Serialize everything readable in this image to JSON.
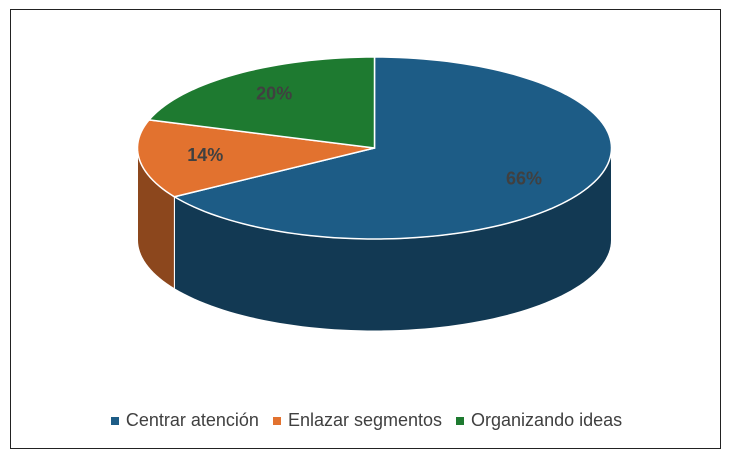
{
  "chart_data": {
    "type": "pie",
    "categories": [
      "Centrar atención",
      "Enlazar segmentos",
      "Organizando ideas"
    ],
    "values": [
      66,
      14,
      20
    ],
    "value_labels": [
      "66%",
      "14%",
      "20%"
    ],
    "colors": [
      "#1d5c86",
      "#e2722f",
      "#1e7a30"
    ],
    "legend": "bottom"
  }
}
